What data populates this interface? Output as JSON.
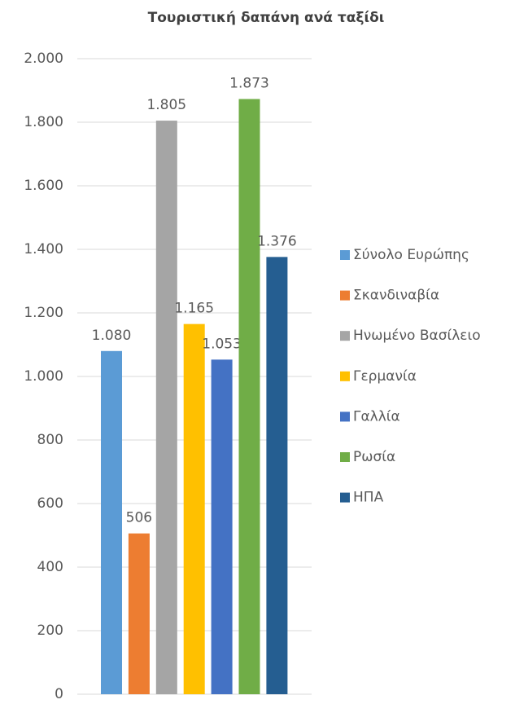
{
  "chart_data": {
    "type": "bar",
    "title": "Τουριστική δαπάνη ανά ταξίδι",
    "categories": [
      null
    ],
    "series": [
      {
        "name": "Σύνολο Ευρώπης",
        "color": "#5b9bd5",
        "values": [
          1080
        ],
        "value_labels": [
          "1.080"
        ]
      },
      {
        "name": "Σκανδιναβία",
        "color": "#ed7d31",
        "values": [
          506
        ],
        "value_labels": [
          "506"
        ]
      },
      {
        "name": "Ηνωμένο Βασίλειο",
        "color": "#a5a5a5",
        "values": [
          1805
        ],
        "value_labels": [
          "1.805"
        ]
      },
      {
        "name": "Γερμανία",
        "color": "#ffc000",
        "values": [
          1165
        ],
        "value_labels": [
          "1.165"
        ]
      },
      {
        "name": "Γαλλία",
        "color": "#4472c4",
        "values": [
          1053
        ],
        "value_labels": [
          "1.053"
        ]
      },
      {
        "name": "Ρωσία",
        "color": "#70ad47",
        "values": [
          1873
        ],
        "value_labels": [
          "1.873"
        ]
      },
      {
        "name": "ΗΠΑ",
        "color": "#255e91",
        "values": [
          1376
        ],
        "value_labels": [
          "1.376"
        ]
      }
    ],
    "ylim": [
      0,
      2000
    ],
    "yticks": [
      0,
      200,
      400,
      600,
      800,
      {
        "value": 1000,
        "label": "1.000"
      },
      {
        "value": 1200,
        "label": "1.200"
      },
      {
        "value": 1400,
        "label": "1.400"
      },
      {
        "value": 1600,
        "label": "1.600"
      },
      {
        "value": 1800,
        "label": "1.800"
      },
      {
        "value": 2000,
        "label": "2.000"
      }
    ],
    "grid": true,
    "legend": "right"
  }
}
